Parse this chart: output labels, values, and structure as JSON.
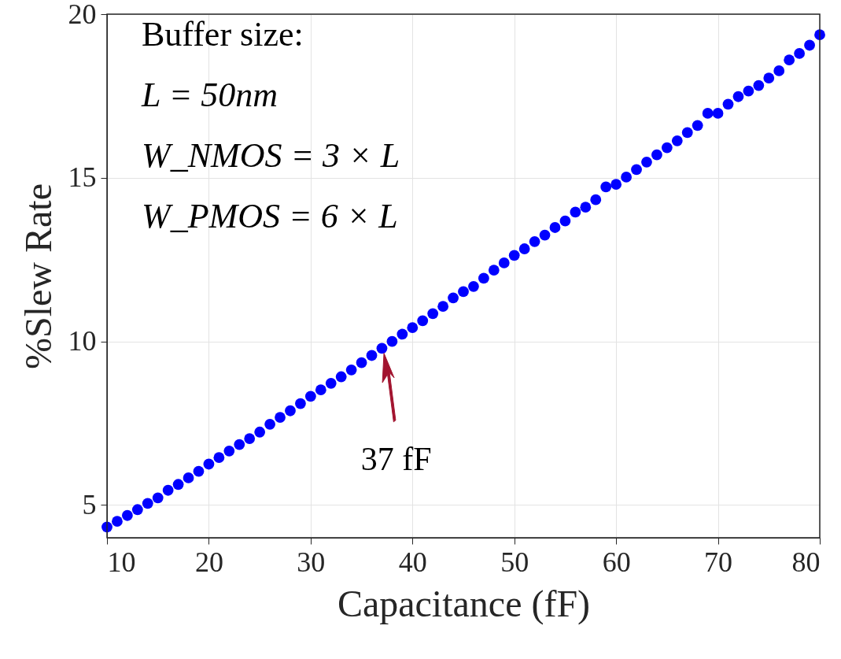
{
  "chart_data": {
    "type": "scatter",
    "xlabel": "Capacitance (fF)",
    "ylabel": "%Slew Rate",
    "x": [
      10,
      11,
      12,
      13,
      14,
      15,
      16,
      17,
      18,
      19,
      20,
      21,
      22,
      23,
      24,
      25,
      26,
      27,
      28,
      29,
      30,
      31,
      32,
      33,
      34,
      35,
      36,
      37,
      38,
      39,
      40,
      41,
      42,
      43,
      44,
      45,
      46,
      47,
      48,
      49,
      50,
      51,
      52,
      53,
      54,
      55,
      56,
      57,
      58,
      59,
      60,
      61,
      62,
      63,
      64,
      65,
      66,
      67,
      68,
      69,
      70,
      71,
      72,
      73,
      74,
      75,
      76,
      77,
      78,
      79,
      80
    ],
    "series": [
      {
        "color": "#0000ff",
        "values": [
          4.33,
          4.5,
          4.68,
          4.86,
          5.05,
          5.22,
          5.45,
          5.63,
          5.83,
          6.03,
          6.25,
          6.45,
          6.65,
          6.85,
          7.03,
          7.23,
          7.47,
          7.68,
          7.88,
          8.1,
          8.32,
          8.52,
          8.72,
          8.92,
          9.13,
          9.35,
          9.57,
          9.79,
          10.0,
          10.22,
          10.42,
          10.63,
          10.85,
          11.07,
          11.33,
          11.52,
          11.68,
          11.93,
          12.18,
          12.4,
          12.63,
          12.83,
          13.05,
          13.25,
          13.48,
          13.68,
          13.95,
          14.1,
          14.33,
          14.72,
          14.8,
          15.02,
          15.25,
          15.48,
          15.7,
          15.92,
          16.13,
          16.38,
          16.6,
          16.97,
          16.97,
          17.25,
          17.48,
          17.65,
          17.82,
          18.05,
          18.27,
          18.6,
          18.8,
          19.05,
          19.37
        ]
      }
    ],
    "xlim": [
      10,
      80
    ],
    "xticks": [
      10,
      20,
      30,
      40,
      50,
      60,
      70,
      80
    ],
    "ylim": [
      4,
      20
    ],
    "yticks": [
      5,
      10,
      15,
      20
    ],
    "grid": true,
    "marker": "circle",
    "annotations": [
      "Buffer size:",
      "L = 50nm",
      "W_NMOS = 3 × L",
      "W_PMOS = 6 × L",
      {
        "text": "37 fF",
        "x": 37,
        "y": 9.79
      }
    ]
  }
}
